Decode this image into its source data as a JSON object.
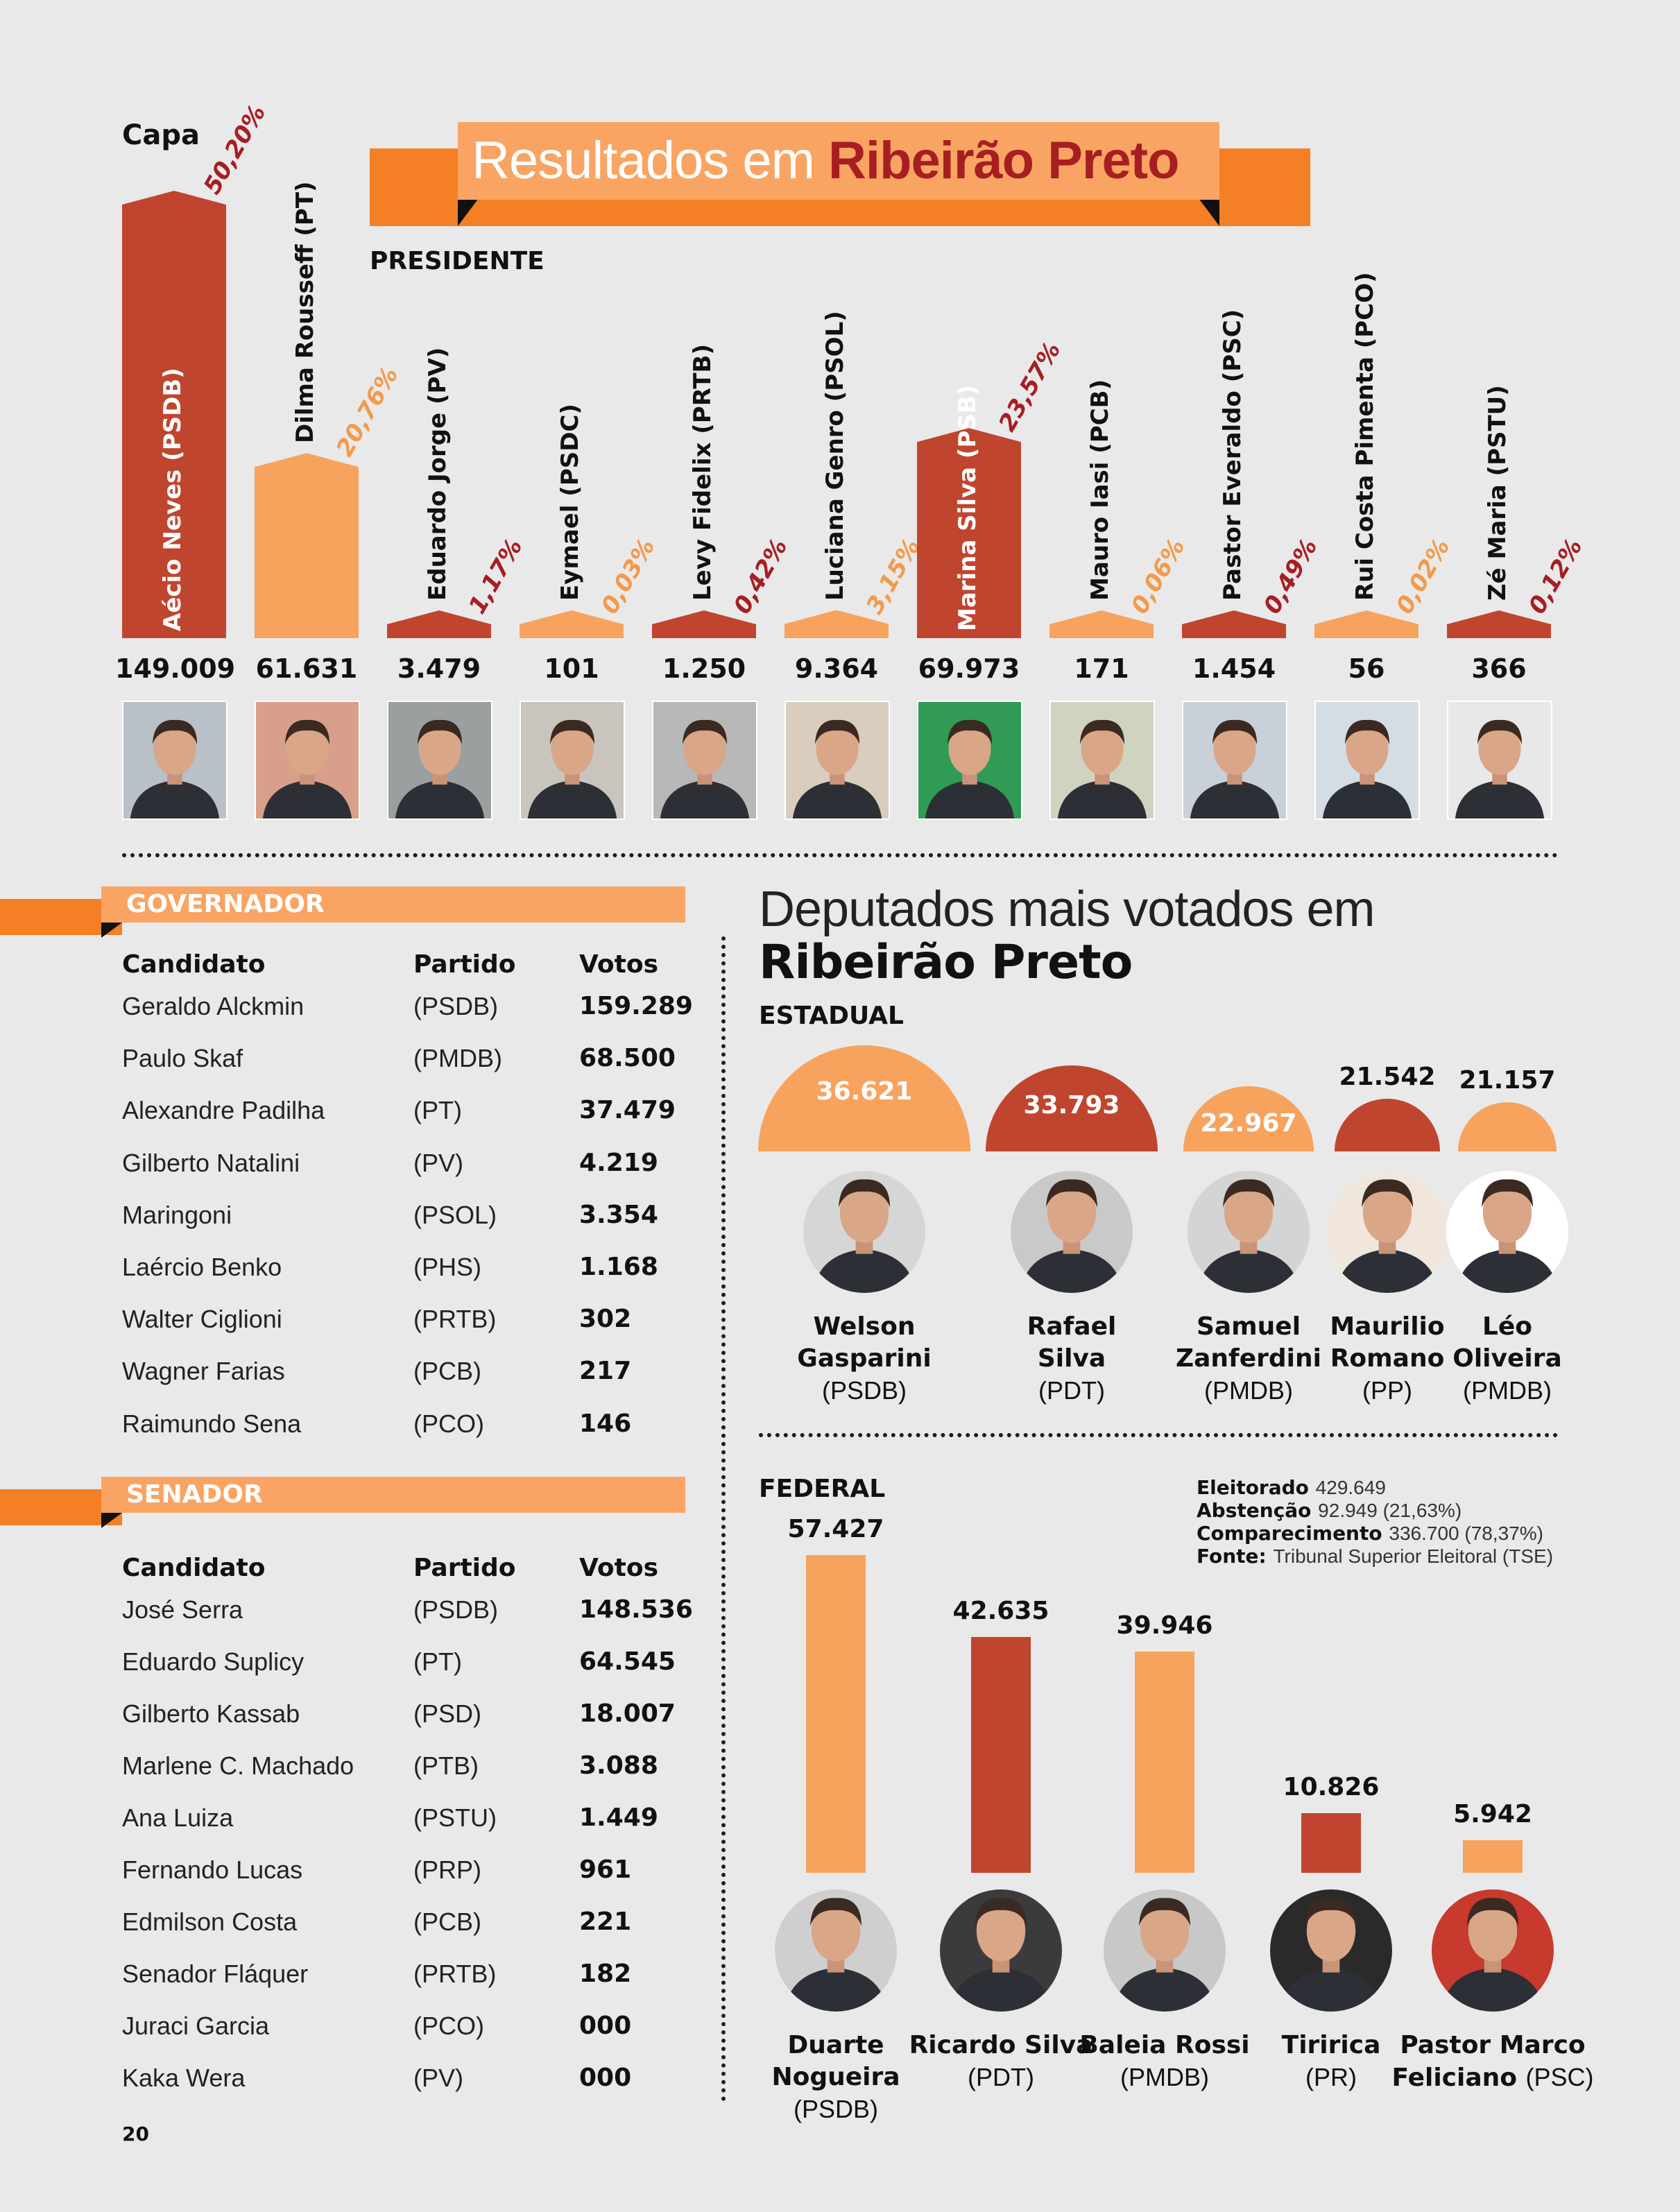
{
  "page": {
    "section_label": "Capa",
    "title_part1": "Resultados em ",
    "title_part2": "Ribeirão Preto",
    "page_number": "20"
  },
  "colors": {
    "dark_red": "#c0452f",
    "light_orange": "#f7a35d",
    "banner_orange": "#f47f24",
    "pct_dark": "#a71e22"
  },
  "president": {
    "heading": "PRESIDENTE",
    "chart_data": {
      "type": "bar",
      "categories": [
        "Aécio Neves (PSDB)",
        "Dilma Rousseff (PT)",
        "Eduardo Jorge (PV)",
        "Eymael (PSDC)",
        "Levy Fidelix (PRTB)",
        "Luciana Genro (PSOL)",
        "Marina Silva (PSB)",
        "Mauro Iasi (PCB)",
        "Pastor Everaldo (PSC)",
        "Rui Costa Pimenta (PCO)",
        "Zé Maria (PSTU)"
      ],
      "percent_labels": [
        "50,20%",
        "20,76%",
        "1,17%",
        "0,03%",
        "0,42%",
        "3,15%",
        "23,57%",
        "0,06%",
        "0,49%",
        "0,02%",
        "0,12%"
      ],
      "values": [
        50.2,
        20.76,
        1.17,
        0.03,
        0.42,
        3.15,
        23.57,
        0.06,
        0.49,
        0.02,
        0.12
      ],
      "votes_labels": [
        "149.009",
        "61.631",
        "3.479",
        "101",
        "1.250",
        "9.364",
        "69.973",
        "171",
        "1.454",
        "56",
        "366"
      ],
      "bar_colors": [
        "dark",
        "light",
        "dark",
        "light",
        "dark",
        "light",
        "dark",
        "light",
        "dark",
        "light",
        "dark"
      ]
    }
  },
  "governor": {
    "heading": "GOVERNADOR",
    "columns": [
      "Candidato",
      "Partido",
      "Votos"
    ],
    "rows": [
      [
        "Geraldo Alckmin",
        "(PSDB)",
        "159.289"
      ],
      [
        "Paulo Skaf",
        "(PMDB)",
        "68.500"
      ],
      [
        "Alexandre Padilha",
        "(PT)",
        "37.479"
      ],
      [
        "Gilberto Natalini",
        "(PV)",
        "4.219"
      ],
      [
        "Maringoni",
        "(PSOL)",
        "3.354"
      ],
      [
        "Laércio Benko",
        "(PHS)",
        "1.168"
      ],
      [
        "Walter Ciglioni",
        "(PRTB)",
        "302"
      ],
      [
        "Wagner Farias",
        "(PCB)",
        "217"
      ],
      [
        "Raimundo Sena",
        "(PCO)",
        "146"
      ]
    ]
  },
  "senator": {
    "heading": "SENADOR",
    "columns": [
      "Candidato",
      "Partido",
      "Votos"
    ],
    "rows": [
      [
        "José Serra",
        "(PSDB)",
        "148.536"
      ],
      [
        "Eduardo Suplicy",
        "(PT)",
        "64.545"
      ],
      [
        "Gilberto Kassab",
        "(PSD)",
        "18.007"
      ],
      [
        "Marlene C. Machado",
        "(PTB)",
        "3.088"
      ],
      [
        "Ana Luiza",
        "(PSTU)",
        "1.449"
      ],
      [
        "Fernando Lucas",
        "(PRP)",
        "961"
      ],
      [
        "Edmilson Costa",
        "(PCB)",
        "221"
      ],
      [
        "Senador Fláquer",
        "(PRTB)",
        "182"
      ],
      [
        "Juraci Garcia",
        "(PCO)",
        "000"
      ],
      [
        "Kaka Wera",
        "(PV)",
        "000"
      ]
    ]
  },
  "deputies": {
    "title_line1": "Deputados mais votados em",
    "title_line2": "Ribeirão Preto",
    "state": {
      "heading": "ESTADUAL",
      "chart_data": {
        "type": "bar",
        "categories": [
          "Welson Gasparini",
          "Rafael Silva",
          "Samuel Zanferdini",
          "Maurilio Romano",
          "Léo Oliveira"
        ],
        "values": [
          36621,
          33793,
          22967,
          21542,
          21157
        ],
        "value_labels": [
          "36.621",
          "33.793",
          "22.967",
          "21.542",
          "21.157"
        ],
        "bar_colors": [
          "light",
          "dark",
          "light",
          "dark",
          "light"
        ]
      },
      "names": [
        {
          "l1": "Welson",
          "l2": "Gasparini",
          "party": "(PSDB)"
        },
        {
          "l1": "Rafael",
          "l2": "Silva",
          "party": "(PDT)"
        },
        {
          "l1": "Samuel",
          "l2": "Zanferdini",
          "party": "(PMDB)"
        },
        {
          "l1": "Maurilio",
          "l2": "Romano",
          "party": "(PP)"
        },
        {
          "l1": "Léo",
          "l2": "Oliveira",
          "party": "(PMDB)"
        }
      ]
    },
    "federal": {
      "heading": "FEDERAL",
      "chart_data": {
        "type": "bar",
        "categories": [
          "Duarte Nogueira",
          "Ricardo Silva",
          "Baleia Rossi",
          "Tiririca",
          "Pastor Marco Feliciano"
        ],
        "values": [
          57427,
          42635,
          39946,
          10826,
          5942
        ],
        "value_labels": [
          "57.427",
          "42.635",
          "39.946",
          "10.826",
          "5.942"
        ],
        "bar_colors": [
          "light",
          "dark",
          "light",
          "dark",
          "light"
        ]
      },
      "names": [
        {
          "l1": "Duarte",
          "l2": "Nogueira",
          "party": "(PSDB)"
        },
        {
          "l1": "Ricardo Silva",
          "l2": "",
          "party": "(PDT)"
        },
        {
          "l1": "Baleia Rossi",
          "l2": "",
          "party": "(PMDB)"
        },
        {
          "l1": "Tiririca",
          "l2": "",
          "party": "(PR)"
        },
        {
          "l1": "Pastor Marco",
          "l2": "Feliciano",
          "party": "(PSC)"
        }
      ]
    },
    "stats": [
      {
        "label": "Eleitorado",
        "value": "429.649"
      },
      {
        "label": "Abstenção",
        "value": "92.949 (21,63%)"
      },
      {
        "label": "Comparecimento",
        "value": "336.700 (78,37%)"
      },
      {
        "label": "Fonte:",
        "value": "Tribunal Superior Eleitoral (TSE)"
      }
    ]
  }
}
